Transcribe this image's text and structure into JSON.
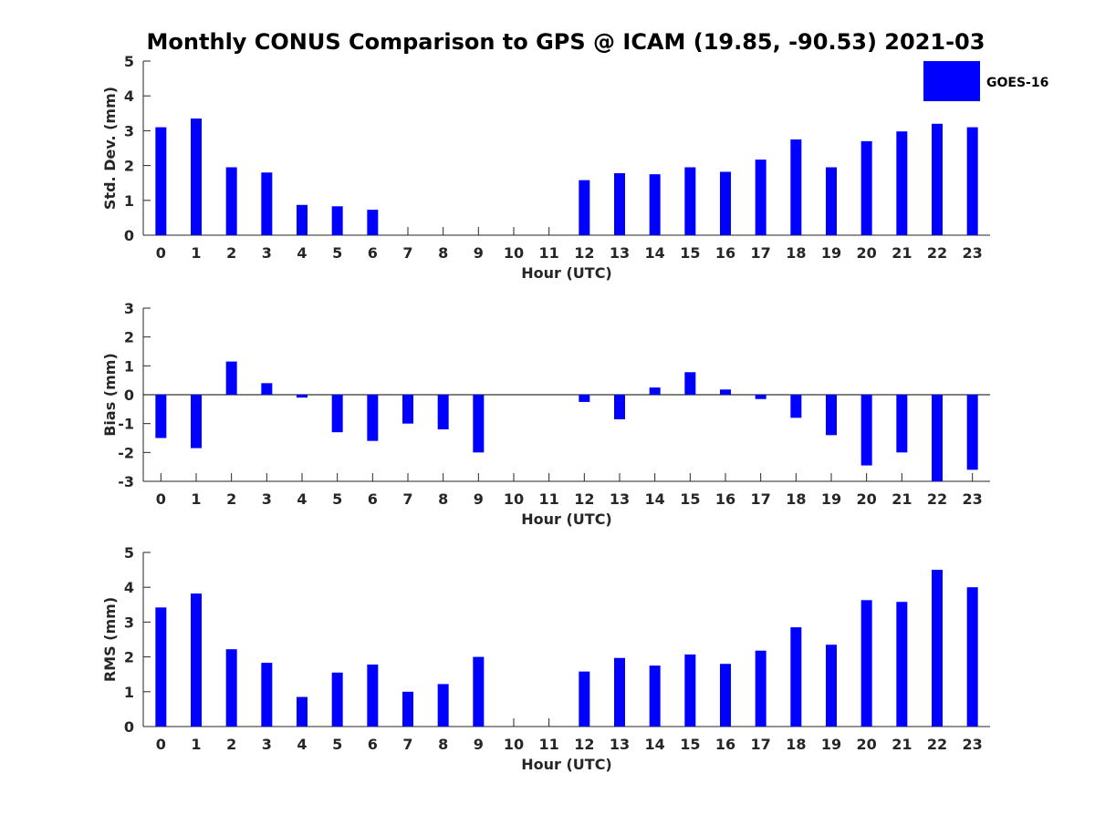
{
  "chart_data": {
    "title": "Monthly CONUS Comparison to GPS @ ICAM (19.85, -90.53) 2021-03",
    "legend": {
      "label": "GOES-16",
      "color": "#0000ff",
      "placement": "top-right"
    },
    "categories": [
      "0",
      "1",
      "2",
      "3",
      "4",
      "5",
      "6",
      "7",
      "8",
      "9",
      "10",
      "11",
      "12",
      "13",
      "14",
      "15",
      "16",
      "17",
      "18",
      "19",
      "20",
      "21",
      "22",
      "23"
    ],
    "panels": [
      {
        "type": "bar",
        "ylabel": "Std. Dev. (mm)",
        "xlabel": "Hour (UTC)",
        "ylim": [
          0,
          5
        ],
        "yticks": [
          0,
          1,
          2,
          3,
          4,
          5
        ],
        "series": [
          {
            "name": "GOES-16",
            "values": [
              3.1,
              3.35,
              1.95,
              1.8,
              0.87,
              0.83,
              0.73,
              null,
              null,
              null,
              null,
              null,
              1.58,
              1.78,
              1.75,
              1.95,
              1.82,
              2.17,
              2.75,
              1.95,
              2.7,
              2.98,
              3.2,
              3.1
            ]
          }
        ]
      },
      {
        "type": "bar",
        "ylabel": "Bias (mm)",
        "xlabel": "Hour (UTC)",
        "ylim": [
          -3,
          3
        ],
        "yticks": [
          -3,
          -2,
          -1,
          0,
          1,
          2,
          3
        ],
        "series": [
          {
            "name": "GOES-16",
            "values": [
              -1.5,
              -1.85,
              1.15,
              0.4,
              -0.1,
              -1.3,
              -1.6,
              -1.0,
              -1.2,
              -2.0,
              null,
              null,
              -0.25,
              -0.85,
              0.25,
              0.78,
              0.18,
              -0.15,
              -0.8,
              -1.4,
              -2.45,
              -2.0,
              -3.0,
              -2.6
            ]
          }
        ]
      },
      {
        "type": "bar",
        "ylabel": "RMS (mm)",
        "xlabel": "Hour (UTC)",
        "ylim": [
          0,
          5
        ],
        "yticks": [
          0,
          1,
          2,
          3,
          4,
          5
        ],
        "series": [
          {
            "name": "GOES-16",
            "values": [
              3.42,
              3.82,
              2.22,
              1.83,
              0.85,
              1.55,
              1.78,
              1.0,
              1.22,
              2.0,
              null,
              null,
              1.58,
              1.97,
              1.75,
              2.07,
              1.8,
              2.18,
              2.85,
              2.35,
              3.63,
              3.58,
              4.5,
              4.0
            ]
          }
        ]
      }
    ]
  }
}
